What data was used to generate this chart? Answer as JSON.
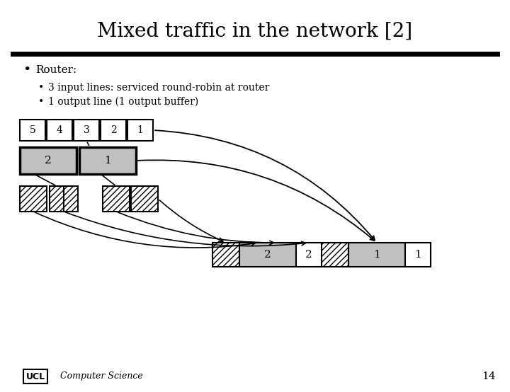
{
  "title": "Mixed traffic in the network [2]",
  "bullet1": "Router:",
  "bullet2": "3 input lines: serviced round-robin at router",
  "bullet3": "1 output line (1 output buffer)",
  "bg_color": "#ffffff",
  "text_color": "#000000",
  "gray_fill": "#c0c0c0",
  "white_fill": "#ffffff",
  "hatch_pattern": "////",
  "row1_labels": [
    "5",
    "4",
    "3",
    "2",
    "1"
  ],
  "page_number": "14",
  "footer_text": "Computer Science",
  "title_fontsize": 20,
  "body_fontsize": 11,
  "sub_fontsize": 10
}
